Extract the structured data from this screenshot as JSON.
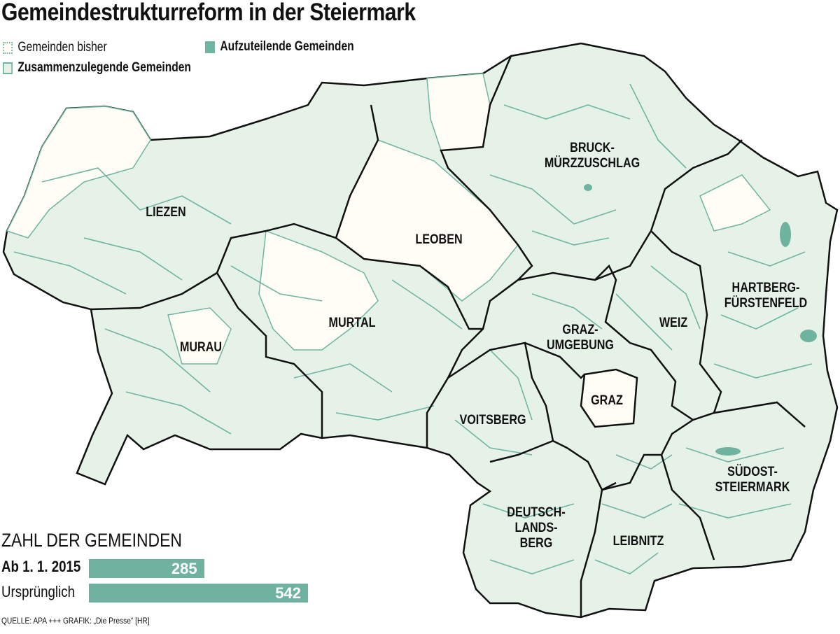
{
  "title": "Gemeindestrukturreform in der Steiermark",
  "legend": {
    "existing": "Gemeinden bisher",
    "merged": "Zusammenzulegende Gemeinden",
    "split": "Aufzuteilende Gemeinden"
  },
  "colors": {
    "merged_fill": "#e6f2e8",
    "border_green": "#6fb5a2",
    "unchanged_fill": "#fffdf5",
    "split_fill": "#6fb2a0",
    "district_border": "#111111"
  },
  "districts": [
    "LIEZEN",
    "LEOBEN",
    "BRUCK-\nMÜRZZUSCHLAG",
    "MURAU",
    "MURTAL",
    "GRAZ-\nUMGEBUNG",
    "WEIZ",
    "HARTBERG-\nFÜRSTENFELD",
    "GRAZ",
    "VOITSBERG",
    "SÜDOST-\nSTEIERMARK",
    "DEUTSCH-\nLANDS-\nBERG",
    "LEIBNITZ"
  ],
  "chart_data": {
    "type": "bar",
    "title": "ZAHL DER GEMEINDEN",
    "categories": [
      "Ab 1. 1. 2015",
      "Ursprünglich"
    ],
    "values": [
      285,
      542
    ]
  },
  "source": "QUELLE: APA  +++  GRAFIK: „Die Presse“ [HR]"
}
